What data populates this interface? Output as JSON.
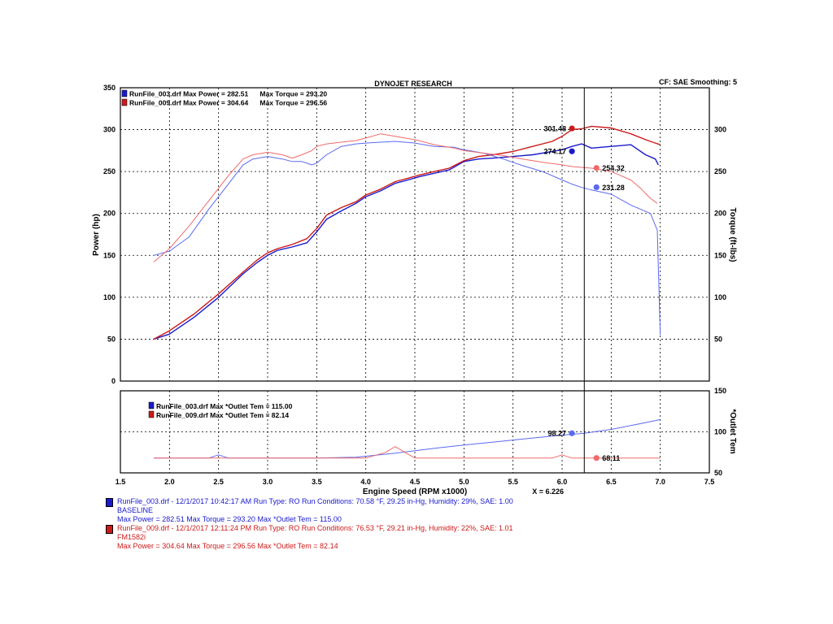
{
  "header": {
    "title": "DYNOJET RESEARCH",
    "cf_label": "CF: SAE  Smoothing: 5"
  },
  "colors": {
    "run1": "#1a1acc",
    "run1_light": "#5a6af0",
    "run2": "#cc1a1a",
    "run2_light": "#f06a6a"
  },
  "legend_main": [
    "RunFile_003.drf Max Power = 282.51      Max Torque = 293.20",
    "RunFile_009.drf Max Power = 304.64      Max Torque = 296.56"
  ],
  "legend_lower": [
    "RunFile_003.drf Max *Outlet Tem = 115.00",
    "RunFile_009.drf Max *Outlet Tem = 82.14"
  ],
  "cursor": {
    "label": "X = 6.226"
  },
  "markers": {
    "power_run2": "301.48",
    "power_run1": "274.17",
    "torque_run2": "254.32",
    "torque_run1": "231.28",
    "temp_run1": "98.27",
    "temp_run2": "68.11"
  },
  "footer": {
    "run1": {
      "line1": "RunFile_003.drf - 12/1/2017 10:42:17 AM  Run Type: RO  Run Conditions: 70.58 °F, 29.25 in-Hg,  Humidity:  29%, SAE: 1.00",
      "line2": "BASELINE",
      "line3": "Max Power = 282.51   Max Torque = 293.20   Max *Outlet Tem = 115.00"
    },
    "run2": {
      "line1": "RunFile_009.drf - 12/1/2017 12:11:24 PM  Run Type: RO  Run Conditions: 76.53 °F, 29.21 in-Hg,  Humidity:  22%, SAE: 1.01",
      "line2": "FM1582i",
      "line3": "Max Power = 304.64   Max Torque = 296.56   Max *Outlet Tem = 82.14"
    }
  },
  "chart_data": [
    {
      "type": "line",
      "xlabel": "Engine Speed (RPM x1000)",
      "ylabel": "Power (hp)",
      "y2label": "Torque (ft-lbs)",
      "xlim": [
        1.5,
        7.5
      ],
      "ylim": [
        0,
        350
      ],
      "xticks": [
        "1.5",
        "2.0",
        "2.5",
        "3.0",
        "3.5",
        "4.0",
        "4.5",
        "5.0",
        "5.5",
        "6.0",
        "6.5",
        "7.0",
        "7.5"
      ],
      "yticks": [
        "0",
        "50",
        "100",
        "150",
        "200",
        "250",
        "300",
        "350"
      ],
      "y2ticks": [
        "50",
        "100",
        "150",
        "200",
        "250",
        "300"
      ],
      "grid": true,
      "cursor_x": 6.226,
      "series": [
        {
          "name": "RunFile_003.drf Power",
          "color": "#1a1acc",
          "x": [
            1.84,
            2.0,
            2.25,
            2.5,
            2.75,
            2.9,
            3.0,
            3.1,
            3.25,
            3.4,
            3.5,
            3.6,
            3.75,
            3.9,
            4.0,
            4.15,
            4.3,
            4.4,
            4.55,
            4.7,
            4.85,
            5.0,
            5.15,
            5.3,
            5.5,
            5.7,
            5.9,
            6.0,
            6.1,
            6.2,
            6.3,
            6.5,
            6.7,
            6.85,
            6.95,
            6.98
          ],
          "y": [
            50,
            56,
            76,
            100,
            128,
            142,
            150,
            156,
            160,
            165,
            178,
            193,
            203,
            212,
            220,
            227,
            236,
            239,
            244,
            248,
            252,
            262,
            265,
            266,
            268,
            270,
            274,
            276,
            280,
            283,
            278,
            280,
            282,
            270,
            265,
            258
          ]
        },
        {
          "name": "RunFile_009.drf Power",
          "color": "#cc1a1a",
          "x": [
            1.84,
            2.0,
            2.25,
            2.5,
            2.75,
            2.9,
            3.0,
            3.1,
            3.25,
            3.4,
            3.5,
            3.6,
            3.75,
            3.9,
            4.0,
            4.15,
            4.3,
            4.4,
            4.55,
            4.7,
            4.85,
            5.0,
            5.15,
            5.3,
            5.5,
            5.7,
            5.9,
            6.0,
            6.1,
            6.2,
            6.3,
            6.5,
            6.7,
            6.85,
            6.95,
            7.0
          ],
          "y": [
            50,
            60,
            80,
            104,
            130,
            145,
            153,
            158,
            163,
            170,
            182,
            198,
            207,
            214,
            222,
            229,
            238,
            241,
            246,
            250,
            254,
            263,
            268,
            270,
            274,
            280,
            286,
            292,
            300,
            301,
            304,
            302,
            295,
            288,
            284,
            282
          ]
        },
        {
          "name": "RunFile_003.drf Torque",
          "color": "#5a6af0",
          "x": [
            1.84,
            2.0,
            2.2,
            2.4,
            2.6,
            2.75,
            2.85,
            3.0,
            3.15,
            3.25,
            3.35,
            3.45,
            3.5,
            3.6,
            3.75,
            3.9,
            4.0,
            4.15,
            4.3,
            4.5,
            4.7,
            4.9,
            5.0,
            5.2,
            5.4,
            5.6,
            5.8,
            6.0,
            6.1,
            6.2,
            6.3,
            6.5,
            6.7,
            6.8,
            6.9,
            6.97,
            7.0
          ],
          "y": [
            150,
            155,
            172,
            205,
            235,
            258,
            265,
            268,
            265,
            262,
            262,
            258,
            260,
            270,
            280,
            283,
            284,
            285,
            286,
            284,
            280,
            279,
            276,
            272,
            265,
            257,
            250,
            240,
            235,
            231,
            228,
            223,
            210,
            205,
            200,
            180,
            55
          ]
        },
        {
          "name": "RunFile_009.drf Torque",
          "color": "#f06a6a",
          "x": [
            1.84,
            2.0,
            2.2,
            2.4,
            2.6,
            2.75,
            2.85,
            3.0,
            3.15,
            3.25,
            3.35,
            3.45,
            3.5,
            3.6,
            3.75,
            3.9,
            4.0,
            4.15,
            4.3,
            4.5,
            4.7,
            4.9,
            5.0,
            5.2,
            5.4,
            5.6,
            5.8,
            6.0,
            6.1,
            6.2,
            6.3,
            6.5,
            6.7,
            6.8,
            6.9,
            6.97
          ],
          "y": [
            142,
            158,
            185,
            215,
            245,
            265,
            270,
            273,
            270,
            266,
            270,
            275,
            280,
            283,
            285,
            287,
            290,
            295,
            292,
            288,
            282,
            278,
            275,
            272,
            269,
            265,
            261,
            258,
            256,
            255,
            254,
            250,
            240,
            230,
            218,
            212
          ]
        }
      ],
      "annotations": [
        {
          "x": 6.1,
          "y": 301.48,
          "text": "301.48",
          "color": "#cc1a1a"
        },
        {
          "x": 6.1,
          "y": 274.17,
          "text": "274.17",
          "color": "#1a1acc"
        },
        {
          "x": 6.35,
          "y": 254.32,
          "text": "254.32",
          "color": "#f06a6a"
        },
        {
          "x": 6.35,
          "y": 231.28,
          "text": "231.28",
          "color": "#5a6af0"
        }
      ]
    },
    {
      "type": "line",
      "xlabel": "Engine Speed (RPM x1000)",
      "y2label": "*Outlet Tem",
      "xlim": [
        1.5,
        7.5
      ],
      "ylim": [
        50,
        150
      ],
      "y2ticks": [
        "50",
        "100",
        "150"
      ],
      "series": [
        {
          "name": "RunFile_003.drf *Outlet Tem",
          "color": "#5a6af0",
          "x": [
            1.84,
            2.4,
            2.5,
            2.6,
            3.0,
            3.5,
            3.9,
            4.3,
            4.7,
            5.0,
            5.5,
            6.0,
            6.226,
            6.5,
            6.8,
            7.0
          ],
          "y": [
            68,
            68,
            72,
            68,
            68,
            68,
            69,
            74,
            80,
            84,
            90,
            96,
            98.27,
            103,
            110,
            115
          ]
        },
        {
          "name": "RunFile_009.drf *Outlet Tem",
          "color": "#f06a6a",
          "x": [
            1.84,
            3.5,
            4.0,
            4.2,
            4.3,
            4.4,
            4.5,
            5.0,
            5.9,
            6.0,
            6.1,
            6.5,
            7.0
          ],
          "y": [
            68,
            68,
            68,
            75,
            82,
            75,
            68,
            68,
            68,
            72,
            68,
            68,
            68
          ]
        }
      ],
      "annotations": [
        {
          "x": 6.1,
          "y": 98.27,
          "text": "98.27",
          "color": "#5a6af0"
        },
        {
          "x": 6.35,
          "y": 68.11,
          "text": "68.11",
          "color": "#f06a6a"
        }
      ]
    }
  ]
}
